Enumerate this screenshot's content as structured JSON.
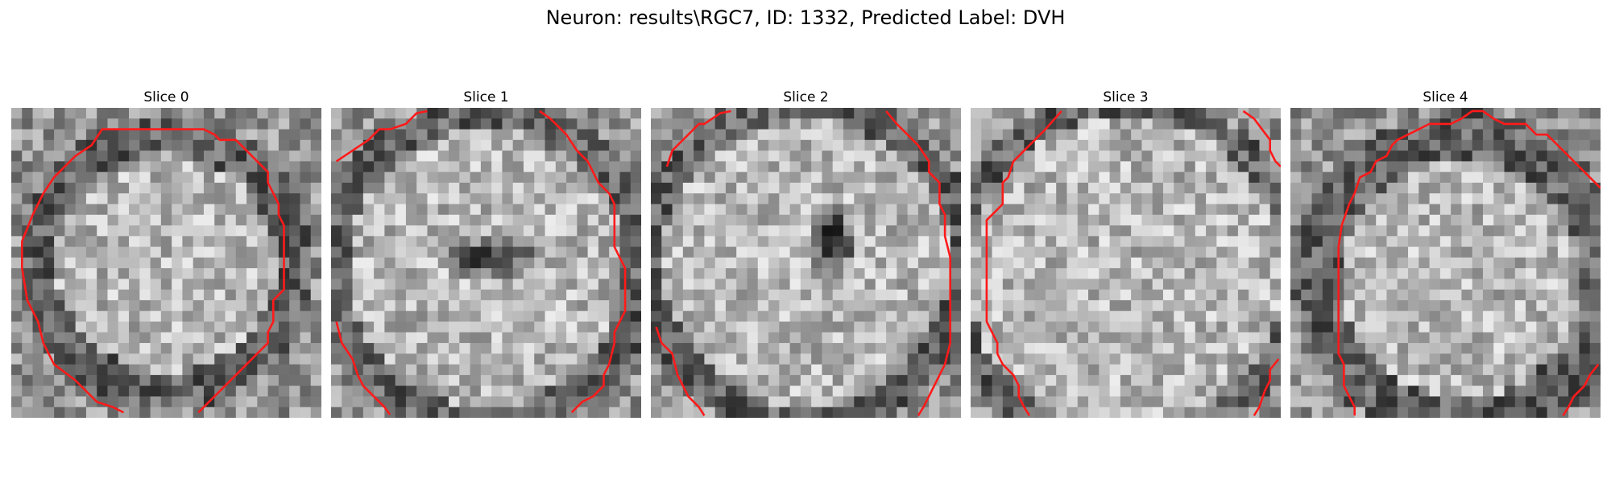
{
  "figure": {
    "title": "Neuron: results\\RGC7, ID: 1332, Predicted Label: DVH"
  },
  "panels": [
    {
      "title": "Slice 0"
    },
    {
      "title": "Slice 1"
    },
    {
      "title": "Slice 2"
    },
    {
      "title": "Slice 3"
    },
    {
      "title": "Slice 4"
    }
  ],
  "colors": {
    "contour": "#ff1a1a"
  }
}
